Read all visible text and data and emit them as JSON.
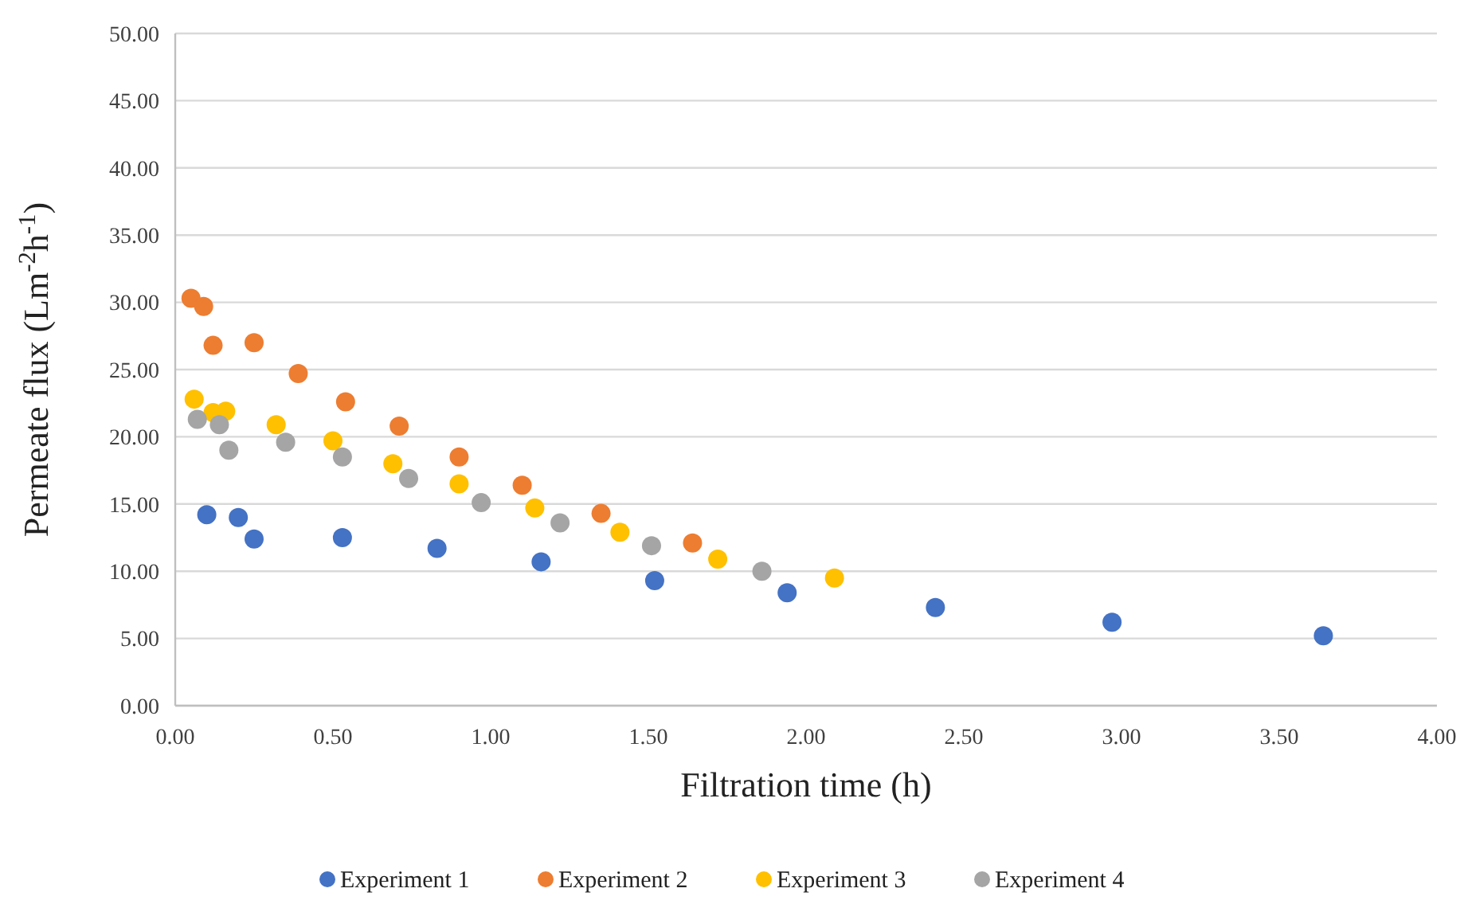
{
  "chart_data": {
    "type": "scatter",
    "xlabel": "Filtration time (h)",
    "ylabel": "Permeate flux (Lm$^{-2}$h$^{-1}$)",
    "xlim": [
      0,
      4
    ],
    "xticks": [
      {
        "value": 0,
        "label": "0.00"
      },
      {
        "value": 0.5,
        "label": "0.50"
      },
      {
        "value": 1,
        "label": "1.00"
      },
      {
        "value": 1.5,
        "label": "1.50"
      },
      {
        "value": 2,
        "label": "2.00"
      },
      {
        "value": 2.5,
        "label": "2.50"
      },
      {
        "value": 3,
        "label": "3.00"
      },
      {
        "value": 3.5,
        "label": "3.50"
      },
      {
        "value": 4,
        "label": "4.00"
      }
    ],
    "ylim": [
      0,
      50
    ],
    "yticks": [
      {
        "value": 0,
        "label": "0.00"
      },
      {
        "value": 5,
        "label": "5.00"
      },
      {
        "value": 10,
        "label": "10.00"
      },
      {
        "value": 15,
        "label": "15.00"
      },
      {
        "value": 20,
        "label": "20.00"
      },
      {
        "value": 25,
        "label": "25.00"
      },
      {
        "value": 30,
        "label": "30.00"
      },
      {
        "value": 35,
        "label": "35.00"
      },
      {
        "value": 40,
        "label": "40.00"
      },
      {
        "value": 45,
        "label": "45.00"
      },
      {
        "value": 50,
        "label": "50.00"
      }
    ],
    "grid": "y",
    "legend": "bottom",
    "marker": "circle",
    "series": [
      {
        "name": "Experiment 1",
        "color": "#4472c4",
        "x": [
          0.1,
          0.2,
          0.25,
          0.53,
          0.83,
          1.16,
          1.52,
          1.94,
          2.41,
          2.97,
          3.64
        ],
        "values": [
          14.2,
          14.0,
          12.4,
          12.5,
          11.7,
          10.7,
          9.3,
          8.4,
          7.3,
          6.2,
          5.2
        ]
      },
      {
        "name": "Experiment 2",
        "color": "#ed7d31",
        "x": [
          0.05,
          0.09,
          0.12,
          0.25,
          0.39,
          0.54,
          0.71,
          0.9,
          1.1,
          1.35,
          1.64
        ],
        "values": [
          30.3,
          29.7,
          26.8,
          27.0,
          24.7,
          22.6,
          20.8,
          18.5,
          16.4,
          14.3,
          12.1
        ]
      },
      {
        "name": "Experiment 3",
        "color": "#ffc000",
        "x": [
          0.06,
          0.12,
          0.16,
          0.32,
          0.5,
          0.69,
          0.9,
          1.14,
          1.41,
          1.72,
          2.09
        ],
        "values": [
          22.8,
          21.8,
          21.9,
          20.9,
          19.7,
          18.0,
          16.5,
          14.7,
          12.9,
          10.9,
          9.5
        ]
      },
      {
        "name": "Experiment 4",
        "color": "#a5a5a5",
        "x": [
          0.07,
          0.14,
          0.17,
          0.35,
          0.53,
          0.74,
          0.97,
          1.22,
          1.51,
          1.86
        ],
        "values": [
          21.3,
          20.9,
          19.0,
          19.6,
          18.5,
          16.9,
          15.1,
          13.6,
          11.9,
          10.0
        ]
      }
    ]
  }
}
